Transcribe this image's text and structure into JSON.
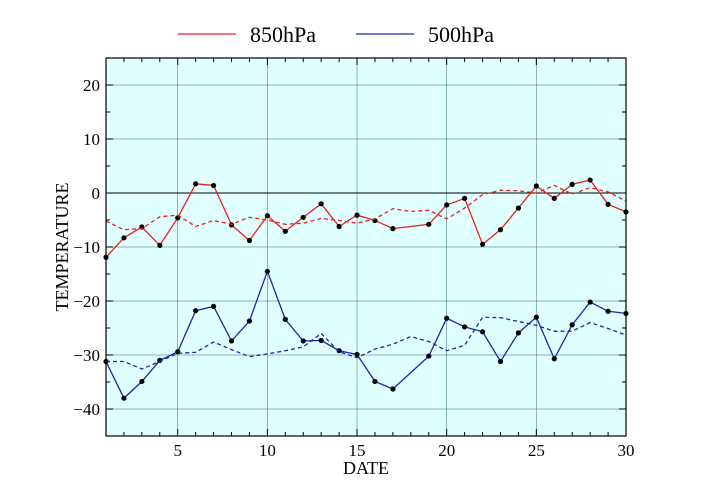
{
  "chart_data": {
    "type": "line",
    "xlabel": "DATE",
    "ylabel": "TEMPERATURE",
    "xlim": [
      1,
      30
    ],
    "ylim": [
      -45,
      25
    ],
    "xticks": [
      5,
      10,
      15,
      20,
      25,
      30
    ],
    "yticks": [
      20,
      10,
      0,
      -10,
      -20,
      -30,
      -40
    ],
    "grid": true,
    "background": "#e0ffff",
    "legend_position": "top",
    "series": [
      {
        "name": "850hPa",
        "color": "#e8231e",
        "style": "solid",
        "markers": true,
        "x": [
          1,
          2,
          3,
          4,
          5,
          6,
          7,
          8,
          9,
          10,
          11,
          12,
          13,
          14,
          15,
          16,
          17,
          19,
          20,
          21,
          22,
          23,
          24,
          25,
          26,
          27,
          28,
          29,
          30
        ],
        "y": [
          -11.9,
          -8.3,
          -6.3,
          -9.7,
          -4.6,
          1.7,
          1.4,
          -5.9,
          -8.8,
          -4.2,
          -7.1,
          -4.5,
          -2.0,
          -6.2,
          -4.1,
          -5.1,
          -6.6,
          -5.8,
          -2.2,
          -1.0,
          -9.5,
          -6.8,
          -2.8,
          1.3,
          -1.0,
          1.6,
          2.4,
          -2.1,
          -3.5
        ]
      },
      {
        "name": "",
        "color": "#e8231e",
        "style": "dashed",
        "markers": false,
        "x": [
          1,
          2,
          3,
          4,
          5,
          6,
          7,
          8,
          9,
          10,
          11,
          12,
          13,
          14,
          15,
          16,
          17,
          18,
          19,
          20,
          21,
          22,
          23,
          24,
          25,
          26,
          27,
          28,
          29,
          30
        ],
        "y": [
          -5.2,
          -6.8,
          -6.6,
          -4.4,
          -4.1,
          -6.2,
          -5.1,
          -5.8,
          -4.5,
          -5.0,
          -5.8,
          -5.6,
          -4.7,
          -5.1,
          -5.6,
          -4.8,
          -2.9,
          -3.4,
          -3.2,
          -4.8,
          -2.8,
          -0.3,
          0.5,
          0.4,
          0.0,
          1.4,
          -0.2,
          1.0,
          0.2,
          -1.5
        ]
      },
      {
        "name": "500hPa",
        "color": "#1a28a8",
        "style": "solid",
        "markers": true,
        "x": [
          1,
          2,
          3,
          4,
          5,
          6,
          7,
          8,
          9,
          10,
          11,
          12,
          13,
          14,
          15,
          16,
          17,
          19,
          20,
          21,
          22,
          23,
          24,
          25,
          26,
          27,
          28,
          29,
          30
        ],
        "y": [
          -31.2,
          -38.0,
          -34.9,
          -31.0,
          -29.4,
          -21.8,
          -21.0,
          -27.4,
          -23.7,
          -14.5,
          -23.4,
          -27.4,
          -27.3,
          -29.2,
          -29.9,
          -34.9,
          -36.3,
          -30.2,
          -23.2,
          -24.8,
          -25.7,
          -31.2,
          -25.9,
          -23.0,
          -30.7,
          -24.4,
          -20.2,
          -21.9,
          -22.3
        ]
      },
      {
        "name": "",
        "color": "#1a28a8",
        "style": "dashed",
        "markers": false,
        "x": [
          1,
          2,
          3,
          4,
          5,
          6,
          7,
          8,
          9,
          10,
          11,
          12,
          13,
          14,
          15,
          16,
          17,
          18,
          19,
          20,
          21,
          22,
          23,
          24,
          25,
          26,
          27,
          28,
          29,
          30
        ],
        "y": [
          -31.2,
          -31.2,
          -32.6,
          -31.2,
          -29.7,
          -29.5,
          -27.6,
          -29.0,
          -30.3,
          -29.8,
          -29.2,
          -28.5,
          -26.0,
          -29.4,
          -30.5,
          -28.9,
          -28.0,
          -26.6,
          -27.5,
          -29.2,
          -28.2,
          -23.0,
          -23.1,
          -23.8,
          -24.5,
          -25.6,
          -25.6,
          -24.0,
          -25.1,
          -26.3
        ]
      }
    ],
    "legend": [
      {
        "label": "850hPa",
        "color": "#e8231e"
      },
      {
        "label": "500hPa",
        "color": "#1a28a8"
      }
    ]
  }
}
